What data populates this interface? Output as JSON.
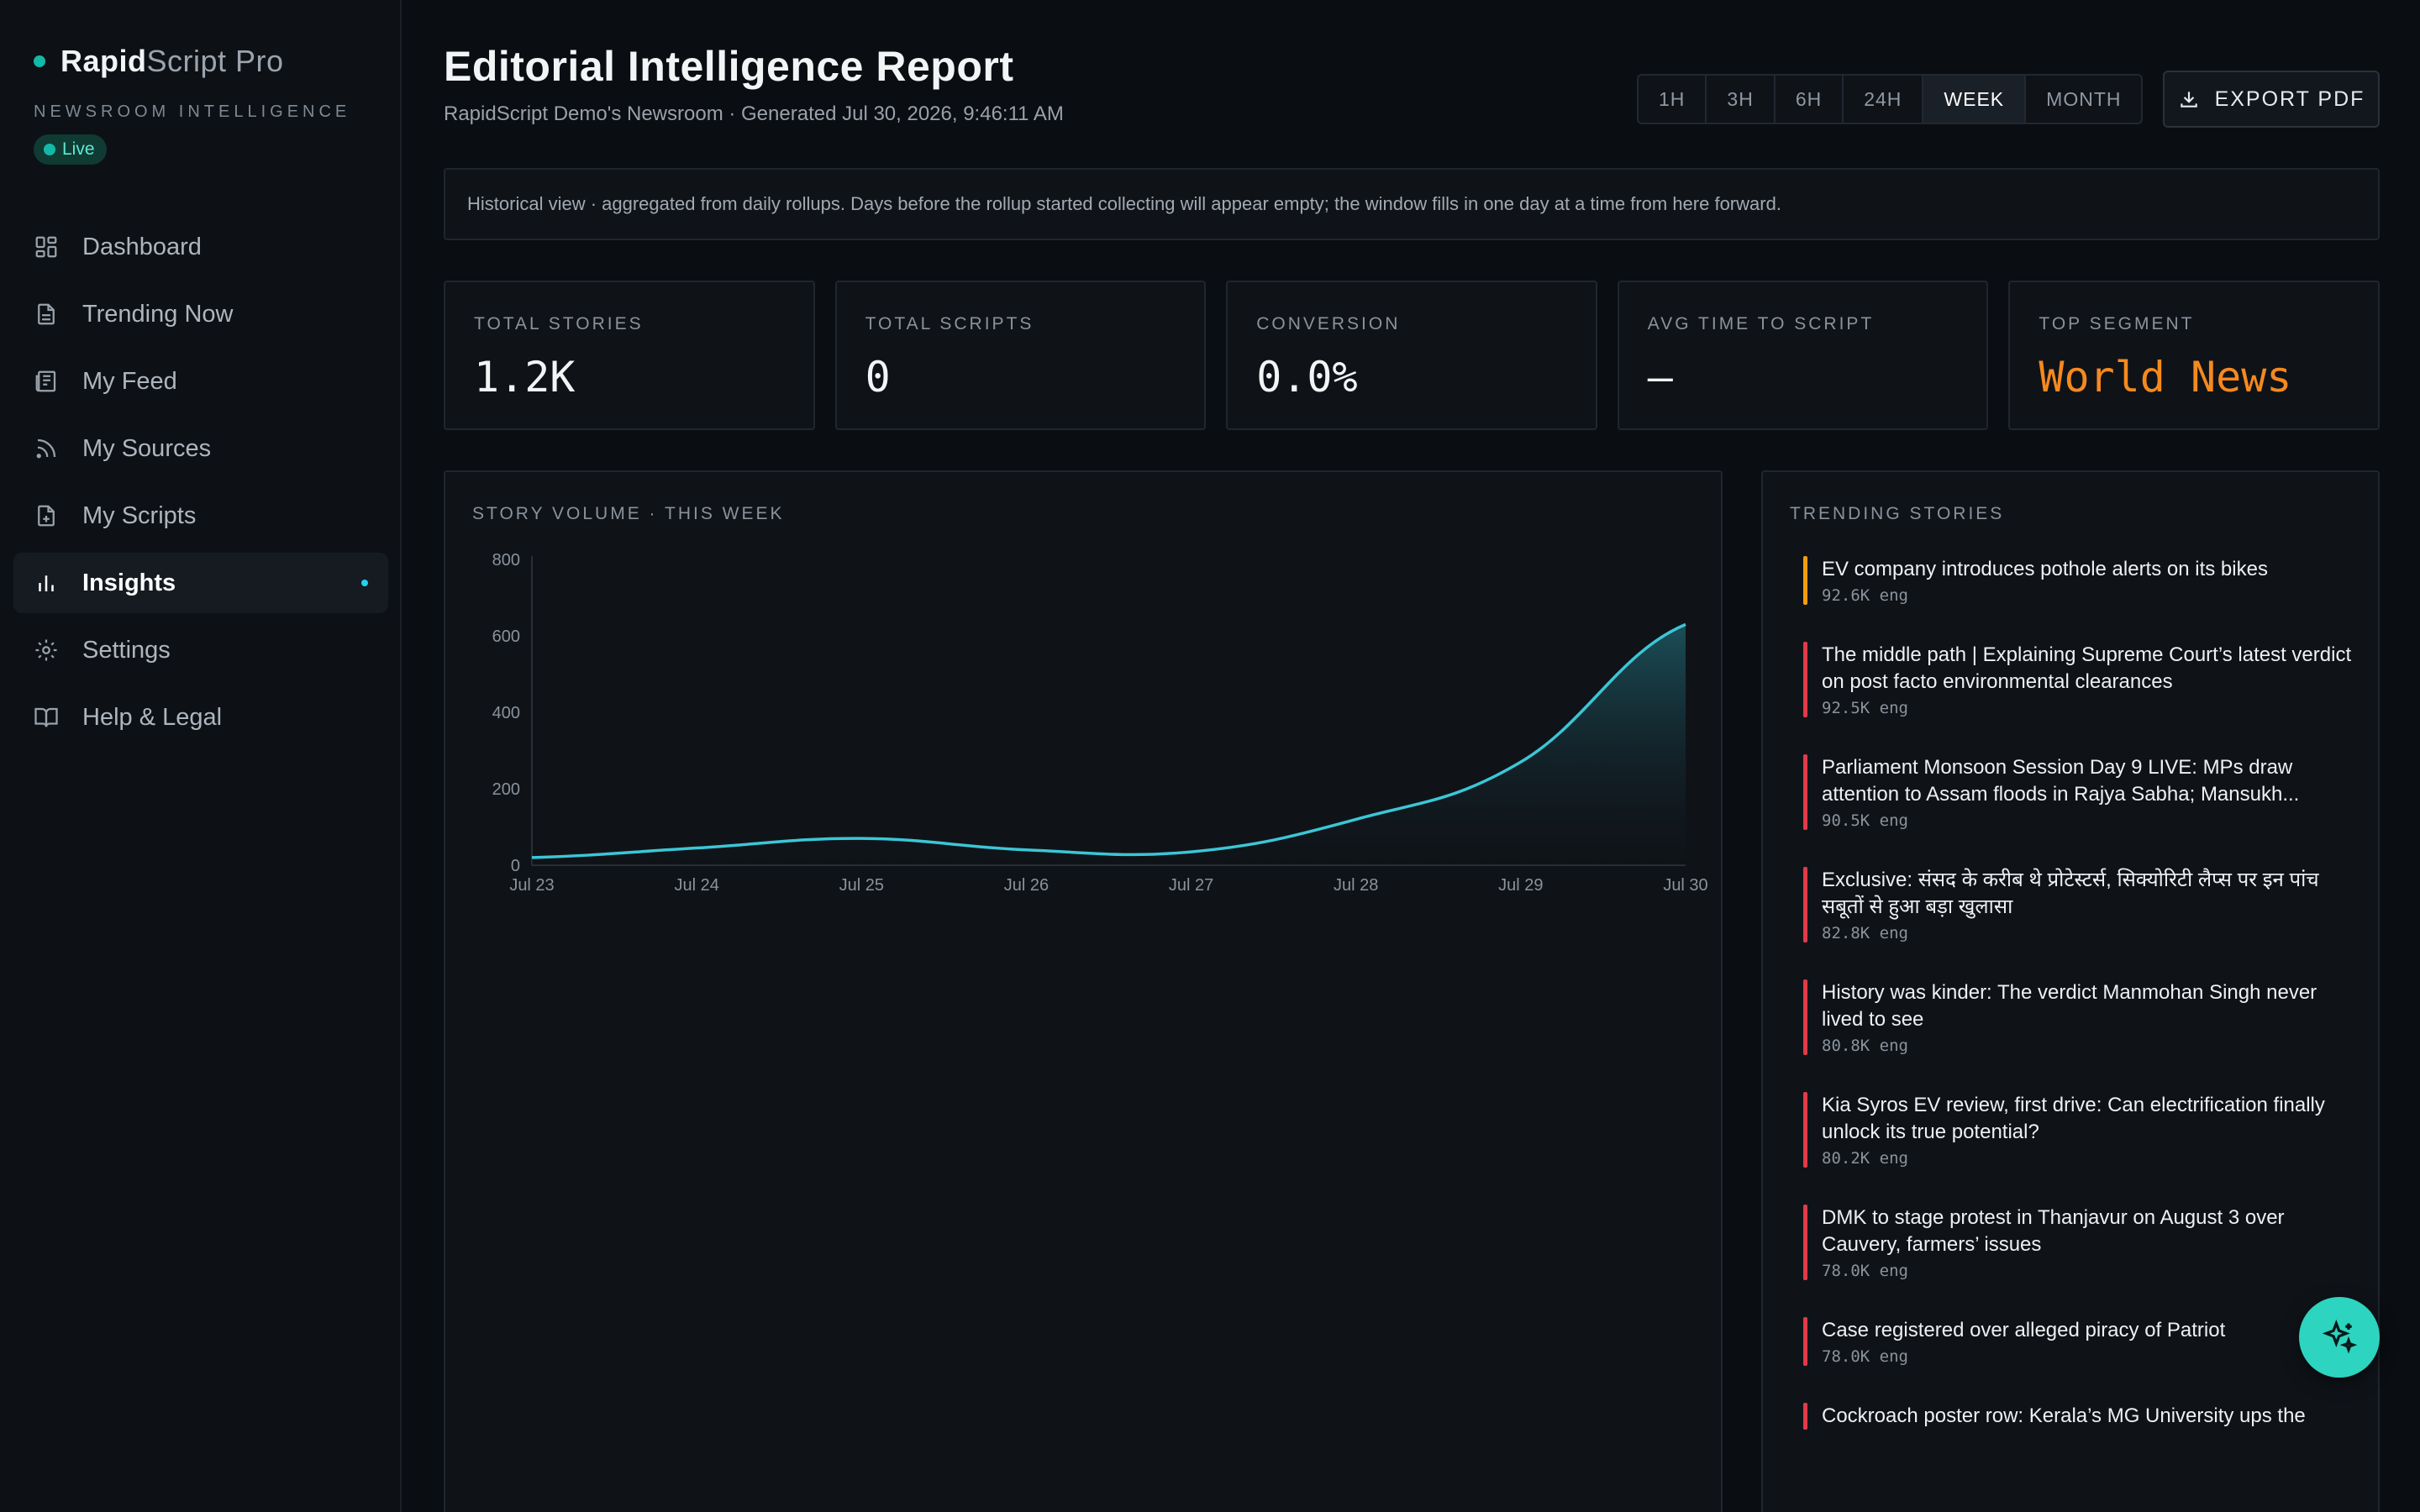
{
  "brand": {
    "name_bold": "Rapid",
    "name_light": "Script Pro",
    "tagline": "NEWSROOM INTELLIGENCE",
    "live_label": "Live"
  },
  "nav": {
    "items": [
      {
        "label": "Dashboard",
        "icon": "dashboard-icon",
        "active": false
      },
      {
        "label": "Trending Now",
        "icon": "document-icon",
        "active": false
      },
      {
        "label": "My Feed",
        "icon": "newspaper-icon",
        "active": false
      },
      {
        "label": "My Sources",
        "icon": "rss-icon",
        "active": false
      },
      {
        "label": "My Scripts",
        "icon": "file-plus-icon",
        "active": false
      },
      {
        "label": "Insights",
        "icon": "bar-chart-icon",
        "active": true
      },
      {
        "label": "Settings",
        "icon": "gear-icon",
        "active": false
      },
      {
        "label": "Help & Legal",
        "icon": "book-icon",
        "active": false
      }
    ]
  },
  "header": {
    "title": "Editorial Intelligence Report",
    "subtitle": "RapidScript Demo's Newsroom · Generated Jul 30, 2026, 9:46:11 AM",
    "ranges": [
      "1H",
      "3H",
      "6H",
      "24H",
      "WEEK",
      "MONTH"
    ],
    "active_range": "WEEK",
    "export_label": "EXPORT PDF"
  },
  "notice": "Historical view · aggregated from daily rollups. Days before the rollup started collecting will appear empty; the window fills in one day at a time from here forward.",
  "stats": [
    {
      "label": "TOTAL STORIES",
      "value": "1.2K",
      "accent": false
    },
    {
      "label": "TOTAL SCRIPTS",
      "value": "0",
      "accent": false
    },
    {
      "label": "CONVERSION",
      "value": "0.0%",
      "accent": false
    },
    {
      "label": "AVG TIME TO SCRIPT",
      "value": "—",
      "accent": false
    },
    {
      "label": "TOP SEGMENT",
      "value": "World News",
      "accent": true
    }
  ],
  "chart_panel_title": "STORY VOLUME · THIS WEEK",
  "chart_data": {
    "type": "area",
    "title": "STORY VOLUME · THIS WEEK",
    "categories": [
      "Jul 23",
      "Jul 24",
      "Jul 25",
      "Jul 26",
      "Jul 27",
      "Jul 28",
      "Jul 29",
      "Jul 30"
    ],
    "values": [
      20,
      45,
      70,
      40,
      35,
      120,
      270,
      630
    ],
    "y_ticks": [
      0,
      200,
      400,
      600,
      800
    ],
    "ylim": [
      0,
      800
    ],
    "xlabel": "",
    "ylabel": "",
    "grid": false,
    "colors": {
      "line": "#3cc6d6",
      "fill_top": "#1d5560",
      "fill_bottom": "#0f1318"
    }
  },
  "trending": {
    "title": "TRENDING STORIES",
    "items": [
      {
        "title": "EV company introduces pothole alerts on its bikes",
        "eng": "92.6K eng",
        "color": "orange"
      },
      {
        "title": "The middle path | Explaining Supreme Court’s latest verdict on post facto environmental clearances",
        "eng": "92.5K eng",
        "color": "red"
      },
      {
        "title": "Parliament Monsoon Session Day 9 LIVE: MPs draw attention to Assam floods in Rajya Sabha; Mansukh...",
        "eng": "90.5K eng",
        "color": "red"
      },
      {
        "title": "Exclusive: संसद के करीब थे प्रोटेस्टर्स, सिक्योरिटी लैप्स पर इन पांच सबूतों से हुआ बड़ा खुलासा",
        "eng": "82.8K eng",
        "color": "red"
      },
      {
        "title": "History was kinder: The verdict Manmohan Singh never lived to see",
        "eng": "80.8K eng",
        "color": "red"
      },
      {
        "title": "Kia Syros EV review, first drive: Can electrification finally unlock its true potential?",
        "eng": "80.2K eng",
        "color": "red"
      },
      {
        "title": "DMK to stage protest in Thanjavur on August 3 over Cauvery, farmers’ issues",
        "eng": "78.0K eng",
        "color": "red"
      },
      {
        "title": "Case registered over alleged piracy of Patriot",
        "eng": "78.0K eng",
        "color": "red"
      },
      {
        "title": "Cockroach poster row: Kerala’s MG University ups the",
        "eng": "",
        "color": "red"
      }
    ]
  },
  "fab_icon": "sparkles-icon"
}
